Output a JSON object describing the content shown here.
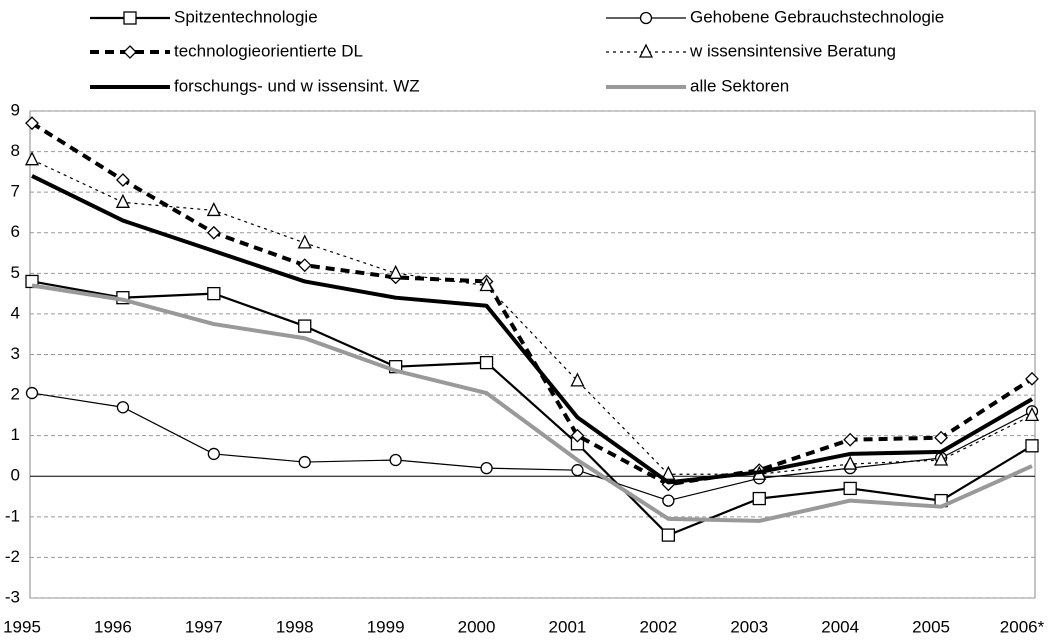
{
  "chart_data": {
    "type": "line",
    "categories": [
      "1995",
      "1996",
      "1997",
      "1998",
      "1999",
      "2000",
      "2001",
      "2002",
      "2003",
      "2004",
      "2005",
      "2006*"
    ],
    "ylim": [
      -3,
      9
    ],
    "yticks": [
      -3,
      -2,
      -1,
      0,
      1,
      2,
      3,
      4,
      5,
      6,
      7,
      8,
      9
    ],
    "grid": true,
    "series": [
      {
        "name": "Spitzentechnologie",
        "color": "#000000",
        "line_style": "solid",
        "weight": "medium",
        "marker": "square",
        "values": [
          4.8,
          4.4,
          4.5,
          3.7,
          2.7,
          2.8,
          0.8,
          -1.45,
          -0.55,
          -0.3,
          -0.6,
          0.75
        ]
      },
      {
        "name": "Gehobene Gebrauchstechnologie",
        "color": "#000000",
        "line_style": "solid",
        "weight": "thin",
        "marker": "circle",
        "values": [
          2.05,
          1.7,
          0.55,
          0.35,
          0.4,
          0.2,
          0.15,
          -0.6,
          -0.05,
          0.2,
          0.45,
          1.6
        ]
      },
      {
        "name": "technologieorientierte DL",
        "color": "#000000",
        "line_style": "dashed",
        "weight": "thick",
        "marker": "diamond",
        "values": [
          8.7,
          7.3,
          6.0,
          5.2,
          4.9,
          4.8,
          1.0,
          -0.2,
          0.15,
          0.9,
          0.95,
          2.4
        ]
      },
      {
        "name": "w issensintensive Beratung",
        "color": "#000000",
        "line_style": "dotted",
        "weight": "thin",
        "marker": "triangle",
        "values": [
          7.8,
          6.75,
          6.55,
          5.75,
          5.0,
          4.7,
          2.35,
          0.05,
          0.05,
          0.3,
          0.4,
          1.5
        ]
      },
      {
        "name": "forschungs- und w issensint. WZ",
        "color": "#000000",
        "line_style": "solid",
        "weight": "thick",
        "marker": "none",
        "values": [
          7.4,
          6.3,
          5.55,
          4.8,
          4.4,
          4.2,
          1.45,
          -0.15,
          0.1,
          0.55,
          0.6,
          1.9
        ]
      },
      {
        "name": "alle Sektoren",
        "color": "#999999",
        "line_style": "solid",
        "weight": "thick",
        "marker": "none",
        "values": [
          4.7,
          4.35,
          3.75,
          3.4,
          2.6,
          2.05,
          0.4,
          -1.05,
          -1.1,
          -0.6,
          -0.75,
          0.25
        ]
      }
    ]
  }
}
